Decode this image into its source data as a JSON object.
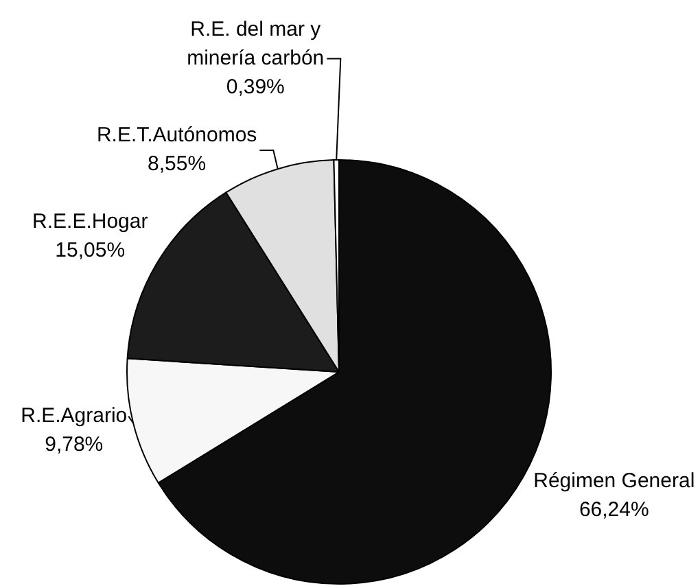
{
  "chart_data": {
    "type": "pie",
    "categories": [
      "Régimen General",
      "R.E.Agrario",
      "R.E.E.Hogar",
      "R.E.T.Autónomos",
      "R.E. del mar y minería carbón"
    ],
    "values": [
      66.24,
      9.78,
      15.05,
      8.55,
      0.39
    ],
    "colors": [
      "#0d0d0d",
      "#f7f7f7",
      "#1c1c1c",
      "#e0e0e0",
      "#ffffff"
    ],
    "value_labels": [
      "66,24%",
      "9,78%",
      "15,05%",
      "8,55%",
      "0,39%"
    ]
  }
}
